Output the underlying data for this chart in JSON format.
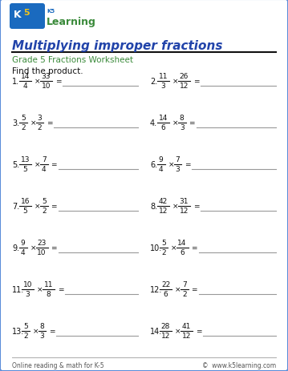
{
  "title": "Multiplying improper fractions",
  "subtitle": "Grade 5 Fractions Worksheet",
  "instruction": "Find the product.",
  "problems": [
    {
      "num": "1",
      "n1": "14",
      "d1": "4",
      "n2": "33",
      "d2": "10"
    },
    {
      "num": "2",
      "n1": "11",
      "d1": "3",
      "n2": "26",
      "d2": "12"
    },
    {
      "num": "3",
      "n1": "5",
      "d1": "2",
      "n2": "3",
      "d2": "2"
    },
    {
      "num": "4",
      "n1": "14",
      "d1": "6",
      "n2": "8",
      "d2": "3"
    },
    {
      "num": "5",
      "n1": "13",
      "d1": "5",
      "n2": "7",
      "d2": "4"
    },
    {
      "num": "6",
      "n1": "9",
      "d1": "4",
      "n2": "7",
      "d2": "3"
    },
    {
      "num": "7",
      "n1": "16",
      "d1": "5",
      "n2": "5",
      "d2": "2"
    },
    {
      "num": "8",
      "n1": "42",
      "d1": "12",
      "n2": "31",
      "d2": "12"
    },
    {
      "num": "9",
      "n1": "9",
      "d1": "4",
      "n2": "23",
      "d2": "10"
    },
    {
      "num": "10",
      "n1": "5",
      "d1": "2",
      "n2": "14",
      "d2": "6"
    },
    {
      "num": "11",
      "n1": "10",
      "d1": "3",
      "n2": "11",
      "d2": "8"
    },
    {
      "num": "12",
      "n1": "22",
      "d1": "6",
      "n2": "7",
      "d2": "2"
    },
    {
      "num": "13",
      "n1": "5",
      "d1": "2",
      "n2": "8",
      "d2": "3"
    },
    {
      "num": "14",
      "n1": "28",
      "d1": "12",
      "n2": "41",
      "d2": "12"
    }
  ],
  "bg_color": "#ffffff",
  "border_color": "#5b8dd9",
  "title_color": "#2244aa",
  "subtitle_color": "#3a8a3a",
  "text_color": "#111111",
  "fraction_color": "#111111",
  "footer_color": "#555555",
  "answer_line_color": "#999999",
  "header_line_color": "#111111",
  "footer_text_left": "Online reading & math for K-5",
  "footer_text_right": "©  www.k5learning.com",
  "logo_blue": "#1a6abf",
  "logo_green": "#3a8a3a",
  "logo_yellow": "#f5c518"
}
